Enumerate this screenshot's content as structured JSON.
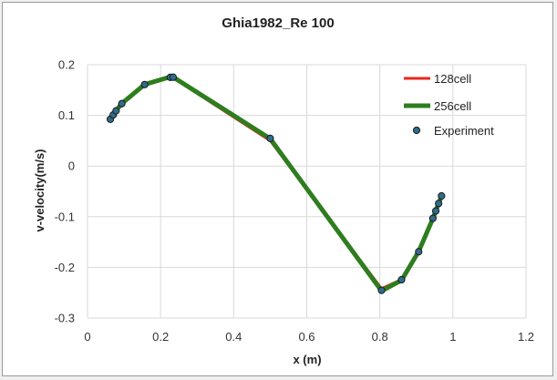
{
  "chart_data": {
    "type": "line",
    "title": "Ghia1982_Re 100",
    "xlabel": "x (m)",
    "ylabel": "v-velocity(m/s)",
    "xlim": [
      0,
      1.2
    ],
    "ylim": [
      -0.3,
      0.2
    ],
    "x_ticks": [
      "0",
      "0.2",
      "0.4",
      "0.6",
      "0.8",
      "1",
      "1.2"
    ],
    "y_ticks": [
      "0.2",
      "0.1",
      "0",
      "-0.1",
      "-0.2",
      "-0.3"
    ],
    "grid": true,
    "legend_position": "top-right",
    "series": [
      {
        "name": "128cell",
        "style": "line",
        "color": "#e8261c",
        "x": [
          0.0625,
          0.0703,
          0.0781,
          0.0938,
          0.1563,
          0.2266,
          0.2344,
          0.5,
          0.8047,
          0.8594,
          0.9063,
          0.9453,
          0.9531,
          0.9609,
          0.9688
        ],
        "y": [
          0.0925,
          0.101,
          0.109,
          0.123,
          0.16,
          0.175,
          0.174,
          0.05,
          -0.242,
          -0.224,
          -0.168,
          -0.102,
          -0.088,
          -0.073,
          -0.059
        ]
      },
      {
        "name": "256cell",
        "style": "line",
        "color": "#2e7d1f",
        "x": [
          0.0625,
          0.0703,
          0.0781,
          0.0938,
          0.1563,
          0.2266,
          0.2344,
          0.5,
          0.8047,
          0.8594,
          0.9063,
          0.9453,
          0.9531,
          0.9609,
          0.9688
        ],
        "y": [
          0.0925,
          0.1015,
          0.1095,
          0.1235,
          0.161,
          0.176,
          0.1755,
          0.054,
          -0.2465,
          -0.2255,
          -0.1685,
          -0.1035,
          -0.0885,
          -0.0735,
          -0.0595
        ]
      },
      {
        "name": "Experiment",
        "style": "marker",
        "color": "#2f6b8c",
        "x": [
          0.0625,
          0.0703,
          0.0781,
          0.0938,
          0.1563,
          0.2266,
          0.2344,
          0.5,
          0.8047,
          0.8594,
          0.9063,
          0.9453,
          0.9531,
          0.9609,
          0.9688
        ],
        "y": [
          0.09233,
          0.10091,
          0.1089,
          0.12317,
          0.16077,
          0.17507,
          0.17527,
          0.05454,
          -0.24533,
          -0.22445,
          -0.16914,
          -0.10313,
          -0.08864,
          -0.07391,
          -0.05906
        ]
      }
    ]
  }
}
